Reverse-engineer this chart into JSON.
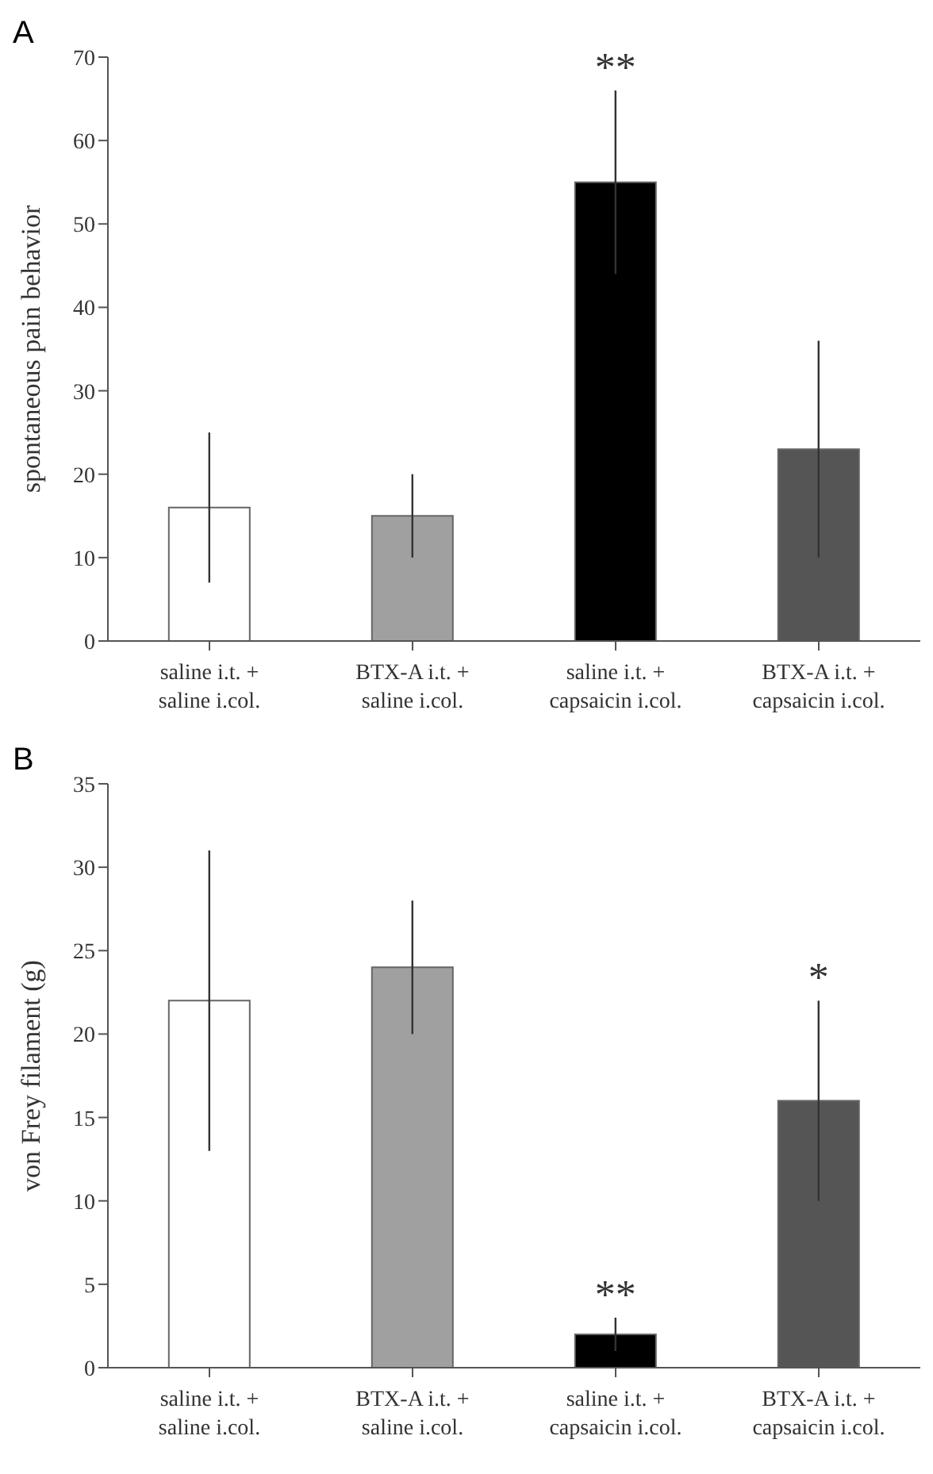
{
  "chart_data": [
    {
      "type": "bar",
      "title": "A",
      "ylabel": "spontaneous pain behavior",
      "categories": [
        "saline i.t. +\nsaline i.col.",
        "BTX-A i.t. +\nsaline i.col.",
        "saline i.t. +\ncapsaicin i.col.",
        "BTX-A i.t. +\ncapsaicin i.col."
      ],
      "values": [
        16,
        15,
        55,
        23
      ],
      "errors": [
        9,
        5,
        11,
        13
      ],
      "colors": [
        "#ffffff",
        "#a0a0a0",
        "#000000",
        "#555555"
      ],
      "ylim": [
        0,
        70
      ],
      "yticks": [
        0,
        10,
        20,
        30,
        40,
        50,
        60,
        70
      ],
      "grid": false,
      "value_labels": [
        null,
        null,
        "**",
        null
      ]
    },
    {
      "type": "bar",
      "title": "B",
      "ylabel": "von Frey filament (g)",
      "categories": [
        "saline i.t. +\nsaline i.col.",
        "BTX-A i.t. +\nsaline i.col.",
        "saline i.t. +\ncapsaicin i.col.",
        "BTX-A i.t. +\ncapsaicin i.col."
      ],
      "values": [
        22,
        24,
        2,
        16
      ],
      "errors": [
        9,
        4,
        1,
        6
      ],
      "colors": [
        "#ffffff",
        "#a0a0a0",
        "#000000",
        "#555555"
      ],
      "ylim": [
        0,
        35
      ],
      "yticks": [
        0,
        5,
        10,
        15,
        20,
        25,
        30,
        35
      ],
      "grid": false,
      "value_labels": [
        null,
        null,
        "**",
        "*"
      ]
    }
  ]
}
